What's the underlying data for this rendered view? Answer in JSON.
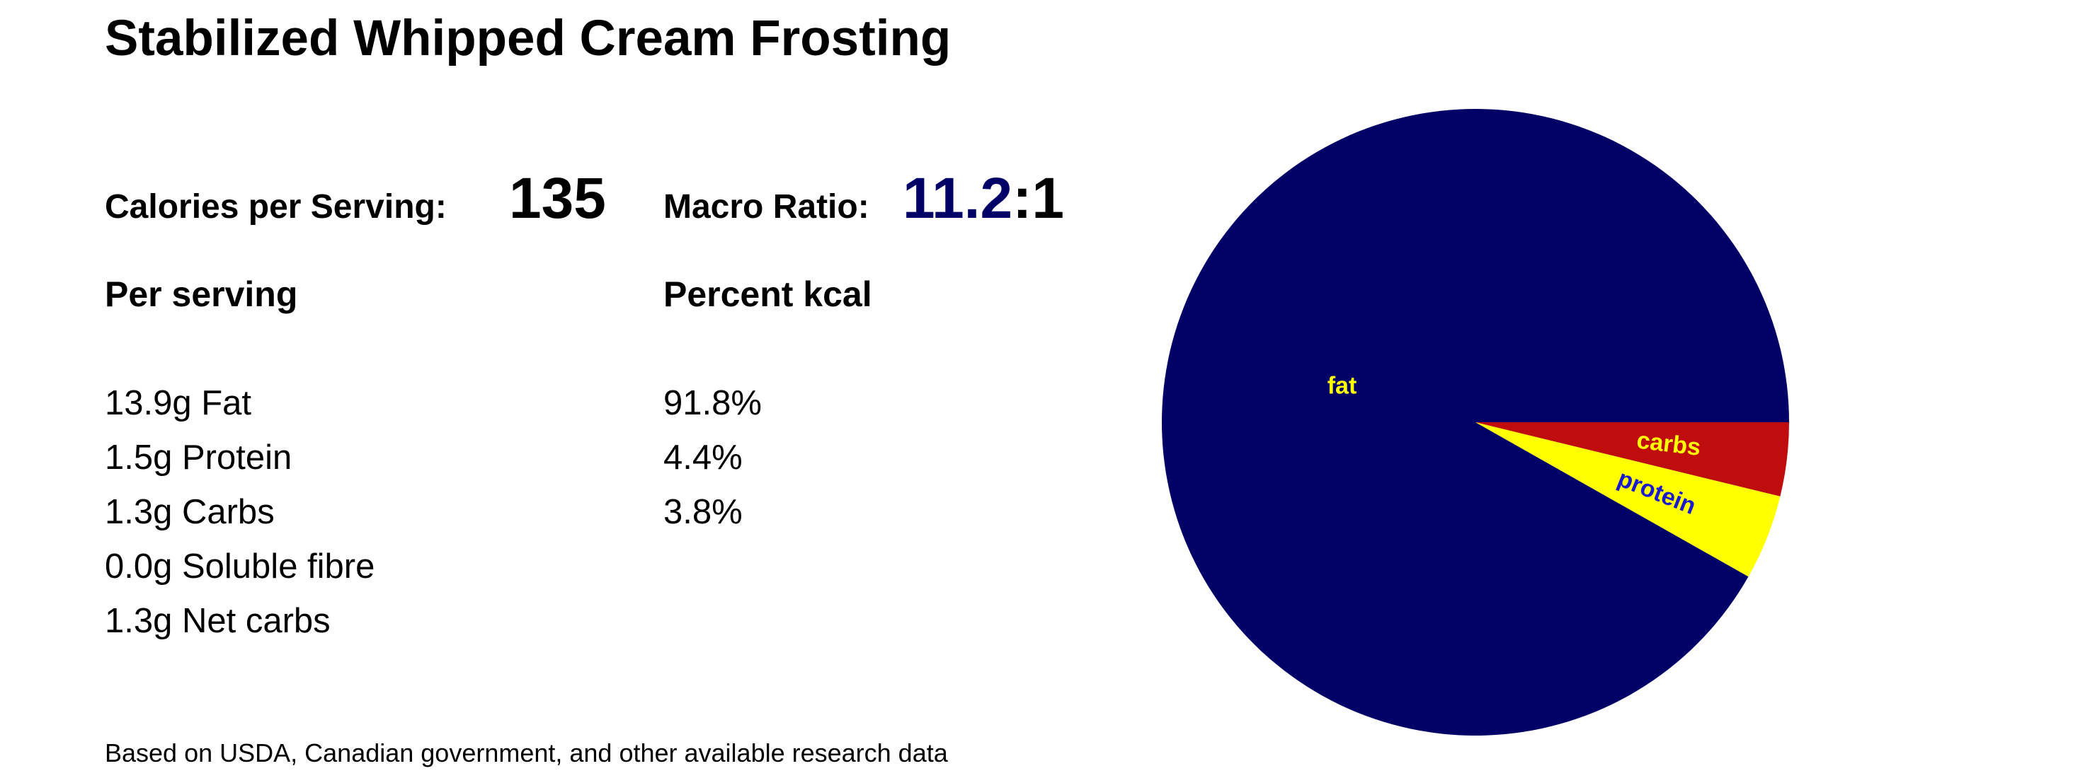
{
  "header": {
    "title": "Stabilized Whipped Cream Frosting"
  },
  "summary": {
    "calories_label": "Calories per Serving:",
    "calories": "135",
    "ratio_label": "Macro Ratio:",
    "ratio_value": "11.2",
    "ratio_suffix": ":1"
  },
  "table": {
    "headers": [
      "Per serving",
      "Percent kcal"
    ],
    "per_serving": [
      "13.9g Fat",
      "1.5g Protein",
      "1.3g Carbs",
      "0.0g Soluble fibre",
      "1.3g Net carbs"
    ]
  },
  "footer": {
    "note": "Based on USDA, Canadian government, and other available research data"
  },
  "chart_data": {
    "type": "pie",
    "categories": [
      "fat",
      "protein",
      "carbs"
    ],
    "values": [
      91.8,
      4.4,
      3.8
    ],
    "value_labels": [
      "91.8%",
      "4.4%",
      "3.8%"
    ],
    "colors": [
      "#000066",
      "#ffff00",
      "#bf0d0d"
    ],
    "label_colors": [
      "#ffff00",
      "#1a1acd",
      "#ffff00"
    ]
  }
}
